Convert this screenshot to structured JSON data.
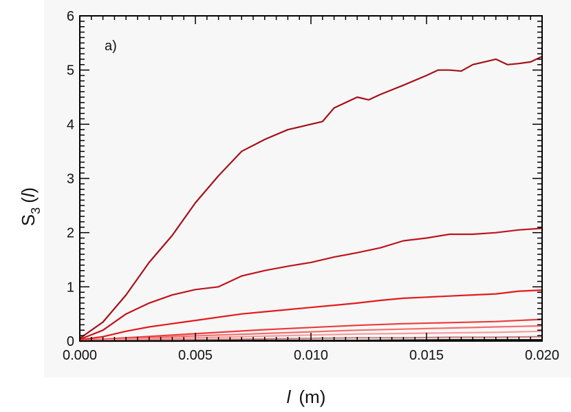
{
  "chart_data": {
    "type": "line",
    "panel_label": "a)",
    "ylabel": {
      "main": "S",
      "sub": "3",
      "open": "(",
      "arg": "l",
      "close": ")"
    },
    "xlabel": {
      "var": "l",
      "unit": "(m)"
    },
    "xlim": [
      0.0,
      0.02
    ],
    "ylim": [
      0,
      6
    ],
    "x_ticks": [
      0.0,
      0.005,
      0.01,
      0.015,
      0.02
    ],
    "x_tick_labels": [
      "0.000",
      "0.005",
      "0.010",
      "0.015",
      "0.020"
    ],
    "y_ticks": [
      0,
      1,
      2,
      3,
      4,
      5,
      6
    ],
    "y_tick_labels": [
      "0",
      "1",
      "2",
      "3",
      "4",
      "5",
      "6"
    ],
    "grid": false,
    "legend": "none",
    "colors": {
      "background": "#f7f7f7",
      "frame": "#000000",
      "series": [
        "#a50f15",
        "#c0131c",
        "#e41a1c",
        "#ee3a3a",
        "#f46d6d",
        "#f79a9a",
        "#c98080",
        "#000000"
      ]
    },
    "series": [
      {
        "values": [
          [
            0,
            0.05
          ],
          [
            0.001,
            0.35
          ],
          [
            0.002,
            0.85
          ],
          [
            0.003,
            1.45
          ],
          [
            0.004,
            1.95
          ],
          [
            0.005,
            2.55
          ],
          [
            0.006,
            3.05
          ],
          [
            0.007,
            3.5
          ],
          [
            0.008,
            3.72
          ],
          [
            0.009,
            3.9
          ],
          [
            0.0095,
            3.95
          ],
          [
            0.01,
            4.0
          ],
          [
            0.0105,
            4.05
          ],
          [
            0.011,
            4.3
          ],
          [
            0.012,
            4.5
          ],
          [
            0.0125,
            4.45
          ],
          [
            0.013,
            4.55
          ],
          [
            0.014,
            4.72
          ],
          [
            0.015,
            4.9
          ],
          [
            0.0155,
            5.0
          ],
          [
            0.016,
            5.0
          ],
          [
            0.0165,
            4.98
          ],
          [
            0.017,
            5.1
          ],
          [
            0.0175,
            5.15
          ],
          [
            0.018,
            5.2
          ],
          [
            0.0185,
            5.1
          ],
          [
            0.019,
            5.12
          ],
          [
            0.0195,
            5.15
          ],
          [
            0.02,
            5.25
          ]
        ]
      },
      {
        "values": [
          [
            0,
            0.03
          ],
          [
            0.001,
            0.2
          ],
          [
            0.002,
            0.5
          ],
          [
            0.003,
            0.7
          ],
          [
            0.004,
            0.85
          ],
          [
            0.005,
            0.95
          ],
          [
            0.006,
            1.0
          ],
          [
            0.007,
            1.2
          ],
          [
            0.008,
            1.3
          ],
          [
            0.009,
            1.38
          ],
          [
            0.01,
            1.45
          ],
          [
            0.011,
            1.55
          ],
          [
            0.012,
            1.63
          ],
          [
            0.013,
            1.72
          ],
          [
            0.014,
            1.85
          ],
          [
            0.015,
            1.9
          ],
          [
            0.016,
            1.97
          ],
          [
            0.017,
            1.97
          ],
          [
            0.018,
            2.0
          ],
          [
            0.019,
            2.05
          ],
          [
            0.02,
            2.08
          ]
        ]
      },
      {
        "values": [
          [
            0,
            0.02
          ],
          [
            0.001,
            0.08
          ],
          [
            0.002,
            0.18
          ],
          [
            0.003,
            0.26
          ],
          [
            0.004,
            0.32
          ],
          [
            0.005,
            0.38
          ],
          [
            0.006,
            0.44
          ],
          [
            0.007,
            0.5
          ],
          [
            0.008,
            0.54
          ],
          [
            0.009,
            0.58
          ],
          [
            0.01,
            0.62
          ],
          [
            0.011,
            0.66
          ],
          [
            0.012,
            0.7
          ],
          [
            0.013,
            0.75
          ],
          [
            0.014,
            0.79
          ],
          [
            0.015,
            0.81
          ],
          [
            0.016,
            0.83
          ],
          [
            0.017,
            0.85
          ],
          [
            0.018,
            0.87
          ],
          [
            0.019,
            0.92
          ],
          [
            0.02,
            0.94
          ]
        ]
      },
      {
        "values": [
          [
            0,
            0.01
          ],
          [
            0.002,
            0.06
          ],
          [
            0.004,
            0.11
          ],
          [
            0.006,
            0.16
          ],
          [
            0.008,
            0.21
          ],
          [
            0.01,
            0.25
          ],
          [
            0.012,
            0.29
          ],
          [
            0.014,
            0.32
          ],
          [
            0.016,
            0.34
          ],
          [
            0.018,
            0.36
          ],
          [
            0.02,
            0.4
          ]
        ]
      },
      {
        "values": [
          [
            0,
            0.01
          ],
          [
            0.002,
            0.04
          ],
          [
            0.004,
            0.08
          ],
          [
            0.006,
            0.11
          ],
          [
            0.008,
            0.14
          ],
          [
            0.01,
            0.17
          ],
          [
            0.012,
            0.2
          ],
          [
            0.014,
            0.22
          ],
          [
            0.016,
            0.24
          ],
          [
            0.018,
            0.26
          ],
          [
            0.02,
            0.28
          ]
        ]
      },
      {
        "values": [
          [
            0,
            0.0
          ],
          [
            0.002,
            0.03
          ],
          [
            0.004,
            0.05
          ],
          [
            0.006,
            0.07
          ],
          [
            0.008,
            0.09
          ],
          [
            0.01,
            0.11
          ],
          [
            0.012,
            0.13
          ],
          [
            0.014,
            0.14
          ],
          [
            0.016,
            0.15
          ],
          [
            0.018,
            0.16
          ],
          [
            0.02,
            0.18
          ]
        ]
      },
      {
        "values": [
          [
            0,
            0.0
          ],
          [
            0.002,
            0.01
          ],
          [
            0.004,
            0.02
          ],
          [
            0.006,
            0.03
          ],
          [
            0.008,
            0.04
          ],
          [
            0.01,
            0.05
          ],
          [
            0.012,
            0.06
          ],
          [
            0.014,
            0.06
          ],
          [
            0.016,
            0.07
          ],
          [
            0.018,
            0.07
          ],
          [
            0.02,
            0.08
          ]
        ]
      },
      {
        "values": [
          [
            0,
            0.0
          ],
          [
            0.004,
            0.0
          ],
          [
            0.008,
            0.01
          ],
          [
            0.012,
            0.01
          ],
          [
            0.016,
            0.02
          ],
          [
            0.02,
            0.02
          ]
        ]
      }
    ]
  }
}
